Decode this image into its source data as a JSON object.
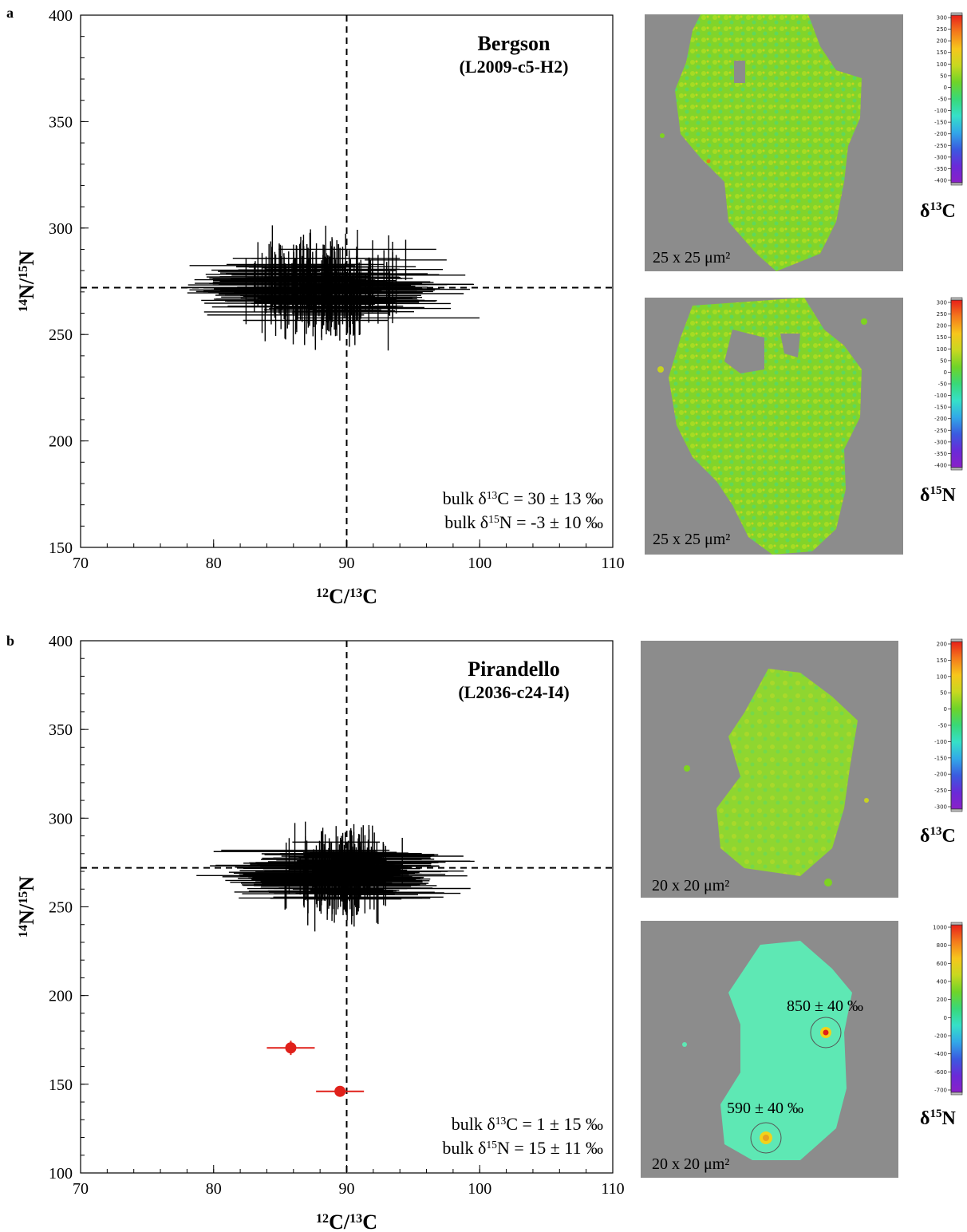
{
  "chart_data": [
    {
      "type": "scatter",
      "panel_label": "a",
      "title": "Bergson",
      "subtitle": "(L2009-c5-H2)",
      "xlabel": "12C/13C",
      "ylabel": "14N/15N",
      "xlim": [
        70,
        110
      ],
      "ylim": [
        150,
        400
      ],
      "xticks": [
        "70",
        "80",
        "90",
        "100",
        "110"
      ],
      "yticks": [
        "150",
        "200",
        "250",
        "300",
        "350",
        "400"
      ],
      "reference_lines": {
        "x": 90,
        "y": 272
      },
      "cluster": {
        "center_x": 88,
        "center_y": 272,
        "spread_x": 3.4,
        "spread_y": 9,
        "xerr": 5,
        "yerr": 13,
        "count": 170,
        "color": "#000000"
      },
      "outliers": [],
      "annotations": [
        "bulk δ13C = 30 ± 13 ‰",
        "bulk δ15N = -3 ± 10  ‰"
      ],
      "grid": false
    },
    {
      "type": "scatter",
      "panel_label": "b",
      "title": "Pirandello",
      "subtitle": "(L2036-c24-I4)",
      "xlabel": "12C/13C",
      "ylabel": "14N/15N",
      "xlim": [
        70,
        110
      ],
      "ylim": [
        100,
        400
      ],
      "xticks": [
        "70",
        "80",
        "90",
        "100",
        "110"
      ],
      "yticks": [
        "100",
        "150",
        "200",
        "250",
        "300",
        "350",
        "400"
      ],
      "reference_lines": {
        "x": 90,
        "y": 272
      },
      "cluster": {
        "center_x": 89.5,
        "center_y": 268,
        "spread_x": 2.4,
        "spread_y": 9,
        "xerr": 5,
        "yerr": 13,
        "count": 150,
        "color": "#000000"
      },
      "outliers": [
        {
          "x": 85.8,
          "y": 170.5,
          "xerr": 1.8,
          "yerr": 4,
          "color": "#e0201a"
        },
        {
          "x": 89.5,
          "y": 146,
          "xerr": 1.8,
          "yerr": 3,
          "color": "#e0201a"
        }
      ],
      "annotations": [
        "bulk δ13C = 1 ± 15 ‰",
        "bulk δ15N = 15 ± 11 ‰"
      ],
      "grid": false
    }
  ],
  "images": [
    {
      "scale_label": "25 x 25 μm²",
      "colorbar_label": "δ13C",
      "colorbar_ticks": [
        "300",
        "250",
        "200",
        "150",
        "100",
        "50",
        "0",
        "-50",
        "-100",
        "-150",
        "-200",
        "-250",
        "-300",
        "-350",
        "-400"
      ]
    },
    {
      "scale_label": "25 x 25 μm²",
      "colorbar_label": "δ15N",
      "colorbar_ticks": [
        "300",
        "250",
        "200",
        "150",
        "100",
        "50",
        "0",
        "-50",
        "-100",
        "-150",
        "-200",
        "-250",
        "-300",
        "-350",
        "-400"
      ]
    },
    {
      "scale_label": "20 x 20 μm²",
      "colorbar_label": "δ13C",
      "colorbar_ticks": [
        "200",
        "150",
        "100",
        "50",
        "0",
        "-50",
        "-100",
        "-150",
        "-200",
        "-250",
        "-300"
      ]
    },
    {
      "scale_label": "20 x 20 μm²",
      "colorbar_label": "δ15N",
      "colorbar_ticks": [
        "1000",
        "800",
        "600",
        "400",
        "200",
        "0",
        "-200",
        "-400",
        "-600",
        "-700"
      ],
      "hotspots": [
        "850 ± 40 ‰",
        "590 ± 40 ‰"
      ]
    }
  ],
  "colors": {
    "map_background": "#8c8c8c",
    "grain_green": "#7ed321",
    "grain_cyan": "#4ff0b0",
    "hotspot": "#e0201a"
  }
}
